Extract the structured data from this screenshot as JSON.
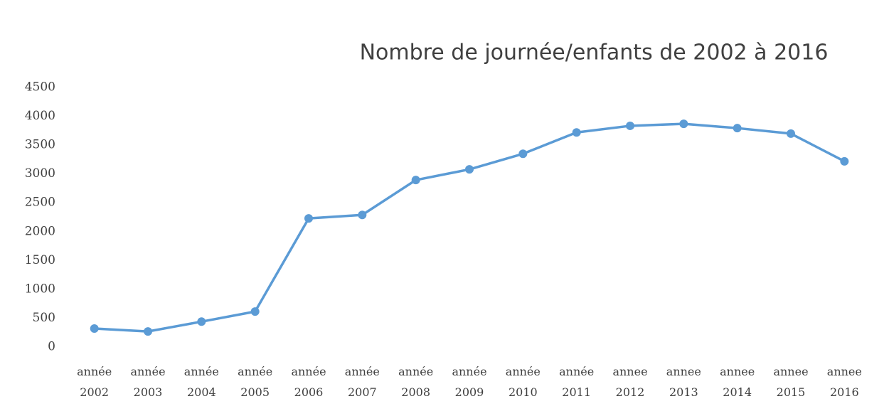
{
  "chart_data": {
    "type": "line",
    "title": "Nombre de journée/enfants de 2002 à 2016",
    "categories": [
      "année 2002",
      "année 2003",
      "année 2004",
      "année 2005",
      "année 2006",
      "année 2007",
      "année 2008",
      "année 2009",
      "année 2010",
      "année 2011",
      "annee 2012",
      "annee 2013",
      "annee 2014",
      "annee 2015",
      "annee 2016"
    ],
    "series": [
      {
        "name": "Nombre de journée/enfants",
        "color": "#5b9bd5",
        "values": [
          320,
          270,
          440,
          615,
          2230,
          2290,
          2895,
          3080,
          3350,
          3720,
          3835,
          3870,
          3795,
          3700,
          3220
        ]
      }
    ],
    "ylim": [
      0,
      4500
    ],
    "yticks": [
      0,
      500,
      1000,
      1500,
      2000,
      2500,
      3000,
      3500,
      4000,
      4500
    ],
    "grid": false
  }
}
